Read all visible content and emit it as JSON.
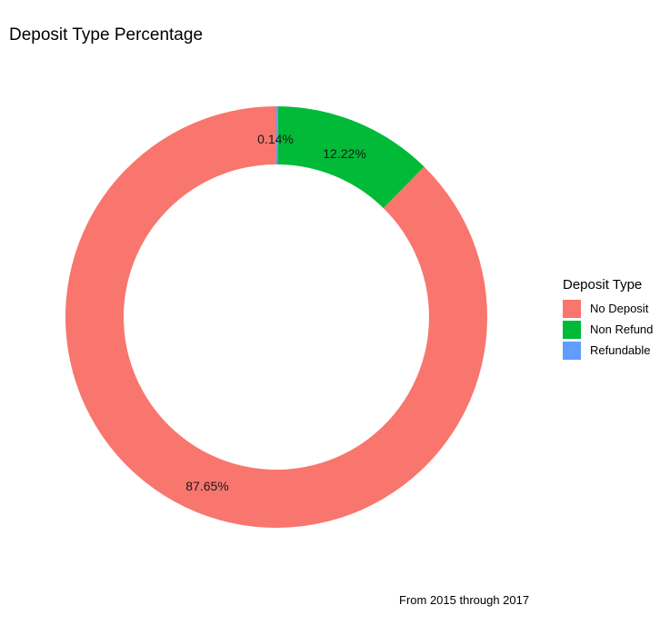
{
  "chart_data": {
    "type": "pie",
    "title": "Deposit Type Percentage",
    "caption": "From 2015 through 2017",
    "legend": {
      "title": "Deposit Type",
      "position": "right"
    },
    "categories": [
      "No Deposit",
      "Non Refund",
      "Refundable"
    ],
    "values": [
      87.65,
      12.22,
      0.14
    ],
    "labels": [
      "87.65%",
      "12.22%",
      "0.14%"
    ],
    "colors": [
      "#F8766D",
      "#00BA38",
      "#619CFF"
    ],
    "donut": true
  }
}
